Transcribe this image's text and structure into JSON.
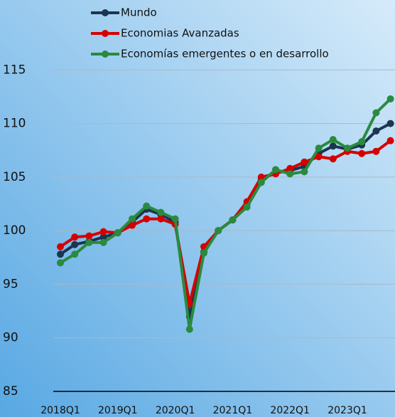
{
  "chart_data": {
    "type": "line",
    "categories": [
      "2018Q1",
      null,
      null,
      null,
      "2019Q1",
      null,
      null,
      null,
      "2020Q1",
      null,
      null,
      null,
      "2021Q1",
      null,
      null,
      null,
      "2022Q1",
      null,
      null,
      null,
      "2023Q1",
      null,
      null,
      null
    ],
    "series": [
      {
        "name": "Mundo",
        "color": "#1c3550",
        "values": [
          97.8,
          98.7,
          99.0,
          99.4,
          99.8,
          100.8,
          102.0,
          101.5,
          100.8,
          92.0,
          98.0,
          100.0,
          101.0,
          102.5,
          104.8,
          105.4,
          105.6,
          106.0,
          107.2,
          107.9,
          107.6,
          108.0,
          109.3,
          110.0
        ]
      },
      {
        "name": "Economias Avanzadas",
        "color": "#d40000",
        "values": [
          98.5,
          99.4,
          99.5,
          99.9,
          99.8,
          100.5,
          101.1,
          101.1,
          100.6,
          93.2,
          98.5,
          100.0,
          101.0,
          102.7,
          105.0,
          105.3,
          105.8,
          106.4,
          106.9,
          106.7,
          107.4,
          107.2,
          107.4,
          108.4
        ]
      },
      {
        "name": "Economías emergentes o en desarrollo",
        "color": "#2a8a3e",
        "values": [
          97.0,
          97.8,
          98.9,
          98.9,
          99.8,
          101.1,
          102.3,
          101.7,
          101.1,
          90.8,
          97.9,
          100.0,
          101.0,
          102.2,
          104.5,
          105.7,
          105.3,
          105.5,
          107.7,
          108.5,
          107.7,
          108.3,
          111.0,
          112.3
        ]
      }
    ],
    "ylim": [
      85,
      120
    ],
    "yticks": [
      85,
      90,
      95,
      100,
      105,
      110,
      115
    ],
    "grid": true
  }
}
